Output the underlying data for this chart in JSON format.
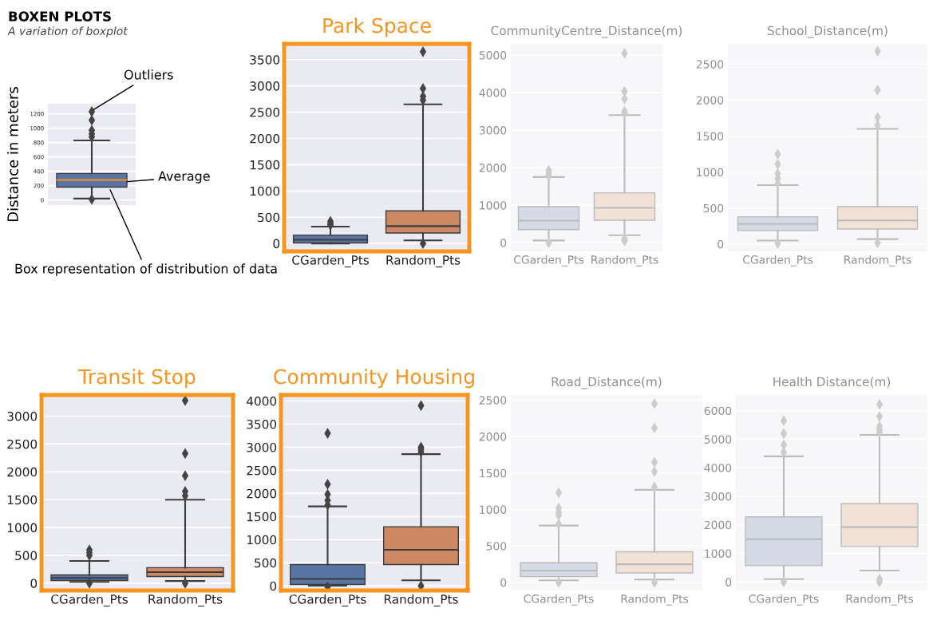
{
  "chart_data": [
    {
      "type": "box",
      "title": "BOXEN PLOTS",
      "subtitle": "A variation of boxplot",
      "ylabel": "Distance in meters",
      "categories": [
        null
      ],
      "colors": [
        "#5875a4"
      ],
      "boxes": [
        {
          "low": 20,
          "q1": 180,
          "median": 280,
          "q3": 370,
          "high": 830,
          "outliers": [
            1230,
            1110,
            970,
            920,
            880,
            10
          ]
        }
      ],
      "ylim": [
        -70,
        1340
      ],
      "yticks": [
        0,
        200,
        400,
        600,
        800,
        1000,
        1200
      ],
      "grid": "y",
      "annotations": [
        "Outliers",
        "Average",
        "Box representation of distribution of data"
      ]
    },
    {
      "type": "box",
      "title": "Park Space",
      "categories": [
        "CGarden_Pts",
        "Random_Pts"
      ],
      "colors": [
        "#5875a4",
        "#cc8963"
      ],
      "boxes": [
        {
          "low": 0,
          "q1": 10,
          "median": 70,
          "q3": 160,
          "high": 320,
          "outliers": [
            420,
            380,
            350
          ]
        },
        {
          "low": 60,
          "q1": 200,
          "median": 330,
          "q3": 620,
          "high": 2650,
          "outliers": [
            3650,
            2950,
            2800,
            2730,
            0
          ]
        }
      ],
      "ylim": [
        -150,
        3800
      ],
      "yticks": [
        0,
        500,
        1000,
        1500,
        2000,
        2500,
        3000,
        3500
      ],
      "grid": "y"
    },
    {
      "type": "box",
      "title": "CommunityCentre_Distance(m)",
      "categories": [
        "CGarden_Pts",
        "Random_Pts"
      ],
      "colors": [
        "#d5dbe6",
        "#f1e1d7"
      ],
      "boxes": [
        {
          "low": 60,
          "q1": 350,
          "median": 590,
          "q3": 960,
          "high": 1750,
          "outliers": [
            1930,
            1850,
            1780,
            0
          ]
        },
        {
          "low": 200,
          "q1": 600,
          "median": 930,
          "q3": 1330,
          "high": 3400,
          "outliers": [
            5050,
            4030,
            3830,
            3500,
            3450,
            100,
            50
          ]
        }
      ],
      "ylim": [
        -230,
        5300
      ],
      "yticks": [
        0,
        1000,
        2000,
        3000,
        4000,
        5000
      ],
      "grid": "y"
    },
    {
      "type": "box",
      "title": "School_Distance(m)",
      "categories": [
        "CGarden_Pts",
        "Random_Pts"
      ],
      "colors": [
        "#d5dbe6",
        "#f1e1d7"
      ],
      "boxes": [
        {
          "low": 50,
          "q1": 190,
          "median": 280,
          "q3": 380,
          "high": 820,
          "outliers": [
            1250,
            1110,
            980,
            910,
            840,
            10
          ]
        },
        {
          "low": 70,
          "q1": 210,
          "median": 330,
          "q3": 520,
          "high": 1600,
          "outliers": [
            2680,
            2140,
            1760,
            1650,
            20
          ]
        }
      ],
      "ylim": [
        -100,
        2780
      ],
      "yticks": [
        0,
        500,
        1000,
        1500,
        2000,
        2500
      ],
      "grid": "y"
    },
    {
      "type": "box",
      "title": "Transit Stop",
      "categories": [
        "CGarden_Pts",
        "Random_Pts"
      ],
      "colors": [
        "#5875a4",
        "#cc8963"
      ],
      "boxes": [
        {
          "low": 25,
          "q1": 50,
          "median": 95,
          "q3": 150,
          "high": 400,
          "outliers": [
            600,
            550,
            500,
            0
          ]
        },
        {
          "low": 40,
          "q1": 120,
          "median": 200,
          "q3": 280,
          "high": 1500,
          "outliers": [
            3280,
            2330,
            1930,
            1650,
            1570,
            0
          ]
        }
      ],
      "ylim": [
        -130,
        3380
      ],
      "yticks": [
        0,
        500,
        1000,
        1500,
        2000,
        2500,
        3000
      ],
      "grid": "y"
    },
    {
      "type": "box",
      "title": "Community Housing",
      "categories": [
        "CGarden_Pts",
        "Random_Pts"
      ],
      "colors": [
        "#5875a4",
        "#cc8963"
      ],
      "boxes": [
        {
          "low": 5,
          "q1": 30,
          "median": 150,
          "q3": 460,
          "high": 1720,
          "outliers": [
            3300,
            2200,
            1980,
            1850,
            1750,
            -20
          ]
        },
        {
          "low": 120,
          "q1": 460,
          "median": 780,
          "q3": 1280,
          "high": 2850,
          "outliers": [
            3900,
            3000,
            2950,
            2900,
            0
          ]
        }
      ],
      "ylim": [
        -100,
        4130
      ],
      "yticks": [
        0,
        500,
        1000,
        1500,
        2000,
        2500,
        3000,
        3500,
        4000
      ],
      "grid": "y"
    },
    {
      "type": "box",
      "title": "Road_Distance(m)",
      "categories": [
        "CGarden_Pts",
        "Random_Pts"
      ],
      "colors": [
        "#d5dbe6",
        "#f1e1d7"
      ],
      "boxes": [
        {
          "low": 30,
          "q1": 80,
          "median": 160,
          "q3": 270,
          "high": 780,
          "outliers": [
            1230,
            1020,
            960,
            920,
            800,
            0
          ]
        },
        {
          "low": 40,
          "q1": 130,
          "median": 250,
          "q3": 420,
          "high": 1270,
          "outliers": [
            2450,
            2120,
            1650,
            1520,
            1310,
            0
          ]
        }
      ],
      "ylim": [
        -110,
        2570
      ],
      "yticks": [
        0,
        500,
        1000,
        1500,
        2000,
        2500
      ],
      "grid": "y"
    },
    {
      "type": "box",
      "title": "Health Distance(m)",
      "categories": [
        "CGarden_Pts",
        "Random_Pts"
      ],
      "colors": [
        "#d5dbe6",
        "#f1e1d7"
      ],
      "boxes": [
        {
          "low": 100,
          "q1": 570,
          "median": 1500,
          "q3": 2280,
          "high": 4400,
          "outliers": [
            5650,
            5200,
            4800,
            4550,
            0
          ]
        },
        {
          "low": 400,
          "q1": 1240,
          "median": 1920,
          "q3": 2740,
          "high": 5150,
          "outliers": [
            6220,
            5800,
            5450,
            5350,
            5250,
            100,
            0
          ]
        }
      ],
      "ylim": [
        -300,
        6550
      ],
      "yticks": [
        0,
        1000,
        2000,
        3000,
        4000,
        5000,
        6000
      ],
      "grid": "y"
    }
  ]
}
